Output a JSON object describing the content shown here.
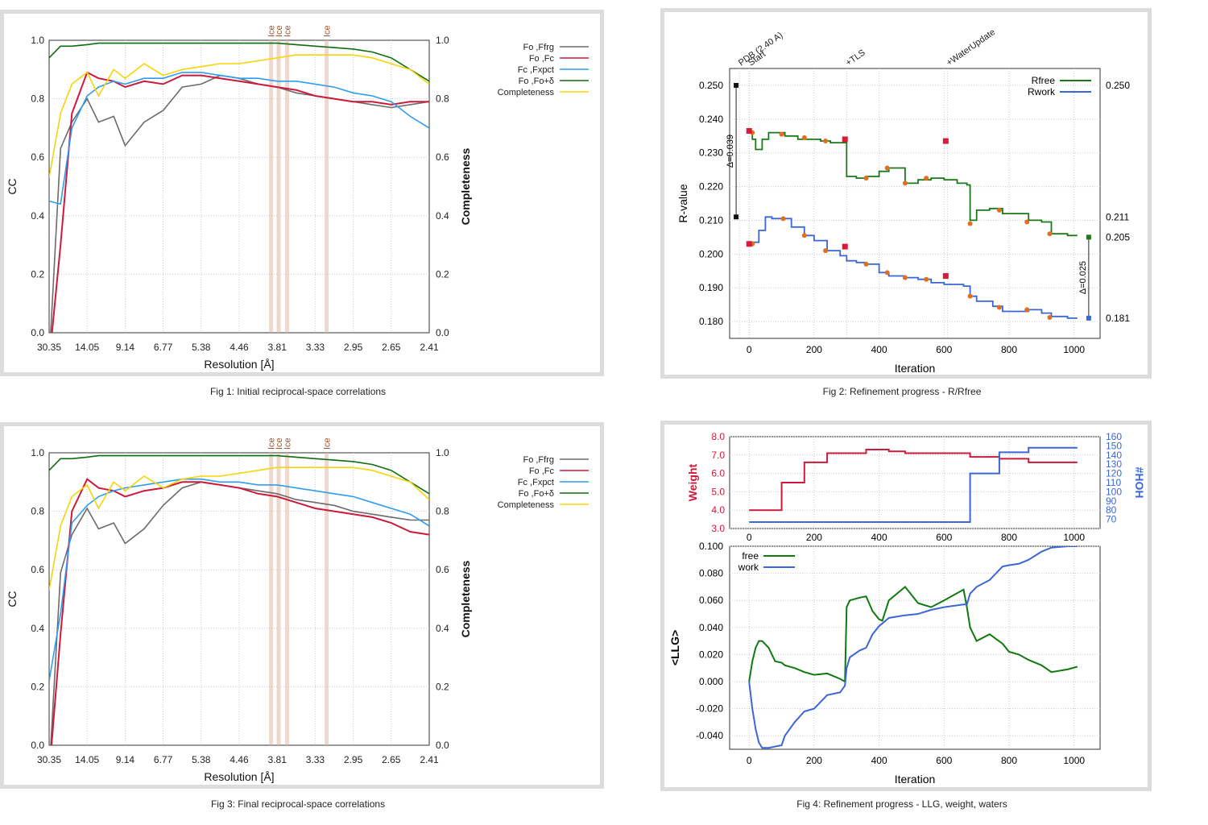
{
  "captions": {
    "fig1": "Fig 1:  Initial reciprocal-space correlations",
    "fig2": "Fig 2:  Refinement progress - R/Rfree",
    "fig3": "Fig 3:  Final reciprocal-space correlations",
    "fig4": "Fig 4:  Refinement progress - LLG, weight, waters"
  },
  "colors": {
    "grey": "#6b6b6b",
    "red": "#cc1a3c",
    "blue": "#2e9cf0",
    "green": "#0e6e0e",
    "yellow": "#f5d40a",
    "ice": "#e0b8a8",
    "rfree": "#1a7a1a",
    "rwork": "#3a66d6",
    "marker_orange": "#e07020",
    "marker_red": "#d81b3b"
  },
  "cc_legend": [
    {
      "label": "Fo ,Ffrg",
      "color": "#6b6b6b"
    },
    {
      "label": "Fo ,Fc",
      "color": "#cc1a3c"
    },
    {
      "label": "Fc ,Fxpct",
      "color": "#2e9cf0"
    },
    {
      "label": "Fo ,Fo+δ",
      "color": "#0e6e0e"
    },
    {
      "label": "Completeness",
      "color": "#f5d40a"
    }
  ],
  "chart_data": [
    {
      "id": "fig1",
      "type": "line",
      "xlabel": "Resolution [Å]",
      "ylabel": "CC",
      "y2label": "Completeness",
      "ylim": [
        0,
        1
      ],
      "xticks": [
        "30.35",
        "14.05",
        "9.14",
        "6.77",
        "5.38",
        "4.46",
        "3.81",
        "3.33",
        "2.95",
        "2.65",
        "2.41"
      ],
      "yticks": [
        "0.0",
        "0.2",
        "0.4",
        "0.6",
        "0.8",
        "1.0"
      ],
      "ice_labels": [
        "Ice",
        "Ice",
        "Ice",
        "Ice"
      ],
      "ice_positions": [
        0.584,
        0.604,
        0.626,
        0.73
      ],
      "x": [
        0,
        0.03,
        0.06,
        0.1,
        0.13,
        0.17,
        0.2,
        0.25,
        0.3,
        0.35,
        0.4,
        0.45,
        0.5,
        0.55,
        0.6,
        0.65,
        0.7,
        0.75,
        0.8,
        0.85,
        0.9,
        0.95,
        1.0
      ],
      "series": [
        {
          "name": "Fo ,Ffrg",
          "color": "#6b6b6b",
          "values": [
            -0.1,
            0.63,
            0.72,
            0.8,
            0.72,
            0.74,
            0.64,
            0.72,
            0.76,
            0.84,
            0.85,
            0.88,
            0.87,
            0.85,
            0.84,
            0.82,
            0.81,
            0.8,
            0.79,
            0.78,
            0.77,
            0.78,
            0.79
          ]
        },
        {
          "name": "Fo ,Fc",
          "color": "#cc1a3c",
          "values": [
            -0.1,
            0.3,
            0.75,
            0.89,
            0.87,
            0.86,
            0.84,
            0.86,
            0.85,
            0.88,
            0.88,
            0.87,
            0.86,
            0.85,
            0.84,
            0.83,
            0.81,
            0.8,
            0.79,
            0.79,
            0.78,
            0.79,
            0.79
          ]
        },
        {
          "name": "Fc ,Fxpct",
          "color": "#2e9cf0",
          "values": [
            0.45,
            0.44,
            0.7,
            0.81,
            0.84,
            0.86,
            0.85,
            0.87,
            0.87,
            0.89,
            0.89,
            0.88,
            0.87,
            0.87,
            0.86,
            0.86,
            0.85,
            0.84,
            0.82,
            0.81,
            0.79,
            0.74,
            0.7
          ]
        },
        {
          "name": "Fo ,Fo+δ",
          "color": "#0e6e0e",
          "values": [
            0.94,
            0.98,
            0.98,
            0.985,
            0.99,
            0.99,
            0.99,
            0.99,
            0.99,
            0.99,
            0.99,
            0.99,
            0.99,
            0.99,
            0.99,
            0.985,
            0.98,
            0.975,
            0.97,
            0.96,
            0.94,
            0.9,
            0.86
          ]
        },
        {
          "name": "Completeness",
          "color": "#f5d40a",
          "values": [
            0.53,
            0.75,
            0.85,
            0.89,
            0.81,
            0.9,
            0.87,
            0.92,
            0.88,
            0.9,
            0.91,
            0.92,
            0.92,
            0.93,
            0.94,
            0.95,
            0.95,
            0.95,
            0.95,
            0.94,
            0.92,
            0.9,
            0.85
          ]
        }
      ]
    },
    {
      "id": "fig2",
      "type": "line",
      "xlabel": "Iteration",
      "ylabel": "R-value",
      "xlim": [
        -60,
        1080
      ],
      "ylim": [
        0.175,
        0.255
      ],
      "xticks": [
        0,
        200,
        400,
        600,
        800,
        1000
      ],
      "yticks": [
        "0.180",
        "0.190",
        "0.200",
        "0.210",
        "0.220",
        "0.230",
        "0.240",
        "0.250"
      ],
      "top_labels": [
        {
          "text": "PDB (2.40 A)",
          "x": -30
        },
        {
          "text": "Start",
          "x": 0
        },
        {
          "text": "+TLS",
          "x": 300
        },
        {
          "text": "+WaterUpdate",
          "x": 610
        }
      ],
      "right_labels": [
        "0.250",
        "0.211",
        "0.205",
        "0.181"
      ],
      "deltas": [
        "Δ=0.039",
        "Δ=0.025"
      ],
      "series": [
        {
          "name": "Rfree",
          "color": "#1a7a1a",
          "x": [
            0,
            10,
            20,
            40,
            60,
            80,
            110,
            150,
            180,
            220,
            250,
            290,
            300,
            330,
            360,
            400,
            430,
            480,
            520,
            560,
            600,
            640,
            670,
            680,
            700,
            740,
            780,
            830,
            860,
            900,
            930,
            980,
            1010
          ],
          "values": [
            0.236,
            0.234,
            0.231,
            0.234,
            0.236,
            0.236,
            0.235,
            0.234,
            0.234,
            0.2335,
            0.233,
            0.233,
            0.223,
            0.2225,
            0.223,
            0.2245,
            0.2255,
            0.221,
            0.222,
            0.2225,
            0.222,
            0.221,
            0.2205,
            0.21,
            0.213,
            0.2135,
            0.212,
            0.212,
            0.21,
            0.2095,
            0.206,
            0.2055,
            0.2055
          ]
        },
        {
          "name": "Rwork",
          "color": "#3a66d6",
          "x": [
            0,
            10,
            30,
            50,
            70,
            100,
            130,
            170,
            200,
            240,
            280,
            300,
            330,
            360,
            400,
            430,
            480,
            520,
            560,
            600,
            660,
            680,
            700,
            750,
            780,
            830,
            860,
            900,
            930,
            980,
            1010
          ],
          "values": [
            0.203,
            0.2035,
            0.207,
            0.211,
            0.2105,
            0.2105,
            0.208,
            0.2055,
            0.204,
            0.201,
            0.1995,
            0.198,
            0.1975,
            0.197,
            0.1945,
            0.1935,
            0.193,
            0.1925,
            0.1915,
            0.191,
            0.1905,
            0.1875,
            0.186,
            0.1845,
            0.183,
            0.183,
            0.1835,
            0.1825,
            0.1815,
            0.181,
            0.181
          ]
        }
      ],
      "markers_orange": [
        [
          10,
          0.236
        ],
        [
          100,
          0.2355
        ],
        [
          170,
          0.2345
        ],
        [
          235,
          0.2335
        ],
        [
          360,
          0.2225
        ],
        [
          425,
          0.2255
        ],
        [
          480,
          0.221
        ],
        [
          545,
          0.2225
        ],
        [
          680,
          0.209
        ],
        [
          770,
          0.213
        ],
        [
          855,
          0.2095
        ],
        [
          925,
          0.206
        ],
        [
          10,
          0.203
        ],
        [
          105,
          0.2105
        ],
        [
          170,
          0.2055
        ],
        [
          235,
          0.201
        ],
        [
          360,
          0.197
        ],
        [
          425,
          0.1945
        ],
        [
          480,
          0.193
        ],
        [
          545,
          0.1925
        ],
        [
          680,
          0.1875
        ],
        [
          770,
          0.1842
        ],
        [
          855,
          0.1835
        ],
        [
          925,
          0.1812
        ]
      ],
      "markers_red": [
        [
          0,
          0.2365
        ],
        [
          295,
          0.234
        ],
        [
          605,
          0.2335
        ],
        [
          0,
          0.203
        ],
        [
          295,
          0.2022
        ],
        [
          605,
          0.1935
        ]
      ],
      "markers_end": [
        {
          "x": 1045,
          "y": 0.205,
          "color": "#1a7a1a"
        },
        {
          "x": 1045,
          "y": 0.181,
          "color": "#3a66d6"
        }
      ],
      "markers_pdb": [
        [
          -40,
          0.25
        ],
        [
          -40,
          0.211
        ]
      ]
    },
    {
      "id": "fig3",
      "type": "line",
      "xlabel": "Resolution [Å]",
      "ylabel": "CC",
      "y2label": "Completeness",
      "ylim": [
        0,
        1
      ],
      "xticks": [
        "30.35",
        "14.05",
        "9.14",
        "6.77",
        "5.38",
        "4.46",
        "3.81",
        "3.33",
        "2.95",
        "2.65",
        "2.41"
      ],
      "yticks": [
        "0.0",
        "0.2",
        "0.4",
        "0.6",
        "0.8",
        "1.0"
      ],
      "ice_labels": [
        "Ice",
        "Ice",
        "Ice",
        "Ice"
      ],
      "ice_positions": [
        0.584,
        0.604,
        0.626,
        0.73
      ],
      "x": [
        0,
        0.03,
        0.06,
        0.1,
        0.13,
        0.17,
        0.2,
        0.25,
        0.3,
        0.35,
        0.4,
        0.45,
        0.5,
        0.55,
        0.6,
        0.65,
        0.7,
        0.75,
        0.8,
        0.85,
        0.9,
        0.95,
        1.0
      ],
      "series": [
        {
          "name": "Fo ,Ffrg",
          "color": "#6b6b6b",
          "values": [
            -0.1,
            0.59,
            0.72,
            0.81,
            0.74,
            0.76,
            0.69,
            0.74,
            0.82,
            0.88,
            0.9,
            0.89,
            0.88,
            0.87,
            0.86,
            0.84,
            0.83,
            0.82,
            0.8,
            0.79,
            0.78,
            0.77,
            0.77
          ]
        },
        {
          "name": "Fo ,Fc",
          "color": "#cc1a3c",
          "values": [
            -0.1,
            0.38,
            0.8,
            0.91,
            0.88,
            0.87,
            0.85,
            0.87,
            0.88,
            0.9,
            0.9,
            0.89,
            0.88,
            0.86,
            0.85,
            0.83,
            0.81,
            0.8,
            0.79,
            0.78,
            0.76,
            0.73,
            0.72
          ]
        },
        {
          "name": "Fc ,Fxpct",
          "color": "#2e9cf0",
          "values": [
            0.22,
            0.45,
            0.76,
            0.82,
            0.85,
            0.87,
            0.88,
            0.89,
            0.9,
            0.91,
            0.91,
            0.9,
            0.9,
            0.89,
            0.89,
            0.88,
            0.87,
            0.86,
            0.85,
            0.83,
            0.81,
            0.79,
            0.75
          ]
        },
        {
          "name": "Fo ,Fo+δ",
          "color": "#0e6e0e",
          "values": [
            0.94,
            0.98,
            0.98,
            0.985,
            0.99,
            0.99,
            0.99,
            0.99,
            0.99,
            0.99,
            0.99,
            0.99,
            0.99,
            0.99,
            0.99,
            0.985,
            0.98,
            0.975,
            0.97,
            0.96,
            0.94,
            0.9,
            0.86
          ]
        },
        {
          "name": "Completeness",
          "color": "#f5d40a",
          "values": [
            0.53,
            0.75,
            0.85,
            0.89,
            0.81,
            0.9,
            0.87,
            0.92,
            0.88,
            0.91,
            0.92,
            0.92,
            0.93,
            0.94,
            0.95,
            0.95,
            0.95,
            0.95,
            0.95,
            0.94,
            0.92,
            0.9,
            0.84
          ]
        }
      ]
    },
    {
      "id": "fig4",
      "type": "line",
      "xlabel": "Iteration",
      "ylabel": "<LLG>",
      "top_ylabel": "Weight",
      "top_y2label": "#HOH",
      "xlim": [
        -60,
        1080
      ],
      "xticks": [
        0,
        200,
        400,
        600,
        800,
        1000
      ],
      "top_ylim": [
        3.0,
        8.0
      ],
      "top_yticks": [
        "3.0",
        "4.0",
        "5.0",
        "6.0",
        "7.0",
        "8.0"
      ],
      "top_y2lim": [
        60,
        160
      ],
      "top_y2ticks": [
        "70",
        "80",
        "90",
        "100",
        "110",
        "120",
        "130",
        "140",
        "150",
        "160"
      ],
      "ylim": [
        -0.05,
        0.1
      ],
      "yticks": [
        "-0.040",
        "-0.020",
        "0.000",
        "0.020",
        "0.040",
        "0.060",
        "0.080",
        "0.100"
      ],
      "weight": {
        "name": "Weight",
        "color": "#cc1a3c",
        "x": [
          0,
          100,
          100,
          170,
          170,
          240,
          240,
          360,
          360,
          430,
          430,
          480,
          480,
          680,
          680,
          770,
          770,
          860,
          860,
          1010
        ],
        "values": [
          4.0,
          4.0,
          5.5,
          5.5,
          6.6,
          6.6,
          7.1,
          7.1,
          7.3,
          7.3,
          7.2,
          7.2,
          7.1,
          7.1,
          6.9,
          6.9,
          6.8,
          6.8,
          6.6,
          6.6
        ]
      },
      "waters": {
        "name": "#HOH",
        "color": "#3a66d6",
        "x": [
          0,
          680,
          680,
          770,
          770,
          860,
          860,
          1010
        ],
        "values": [
          67,
          67,
          120,
          120,
          143,
          143,
          148,
          148
        ]
      },
      "series": [
        {
          "name": "free",
          "color": "#0e7a0e",
          "x": [
            0,
            10,
            20,
            30,
            40,
            60,
            80,
            100,
            110,
            140,
            170,
            200,
            240,
            280,
            295,
            300,
            310,
            340,
            360,
            380,
            400,
            410,
            430,
            480,
            520,
            560,
            600,
            660,
            670,
            680,
            700,
            740,
            780,
            800,
            830,
            860,
            900,
            930,
            980,
            1010
          ],
          "values": [
            0.0,
            0.015,
            0.025,
            0.03,
            0.03,
            0.025,
            0.015,
            0.014,
            0.012,
            0.01,
            0.007,
            0.005,
            0.006,
            0.002,
            0.0,
            0.055,
            0.06,
            0.062,
            0.063,
            0.052,
            0.046,
            0.045,
            0.06,
            0.07,
            0.058,
            0.055,
            0.06,
            0.068,
            0.055,
            0.04,
            0.03,
            0.035,
            0.028,
            0.022,
            0.02,
            0.016,
            0.012,
            0.007,
            0.009,
            0.011
          ]
        },
        {
          "name": "work",
          "color": "#3a66d6",
          "x": [
            0,
            10,
            20,
            30,
            40,
            60,
            80,
            100,
            110,
            140,
            170,
            200,
            240,
            280,
            295,
            300,
            310,
            340,
            360,
            380,
            400,
            410,
            430,
            480,
            520,
            560,
            600,
            660,
            670,
            680,
            700,
            740,
            780,
            800,
            830,
            860,
            900,
            930,
            980,
            1010
          ],
          "values": [
            0.0,
            -0.02,
            -0.035,
            -0.045,
            -0.049,
            -0.049,
            -0.048,
            -0.047,
            -0.04,
            -0.03,
            -0.022,
            -0.02,
            -0.01,
            -0.008,
            -0.003,
            0.01,
            0.018,
            0.023,
            0.025,
            0.035,
            0.041,
            0.043,
            0.047,
            0.049,
            0.05,
            0.053,
            0.055,
            0.057,
            0.057,
            0.065,
            0.07,
            0.075,
            0.085,
            0.086,
            0.087,
            0.09,
            0.096,
            0.099,
            0.1,
            0.1
          ]
        }
      ]
    }
  ]
}
